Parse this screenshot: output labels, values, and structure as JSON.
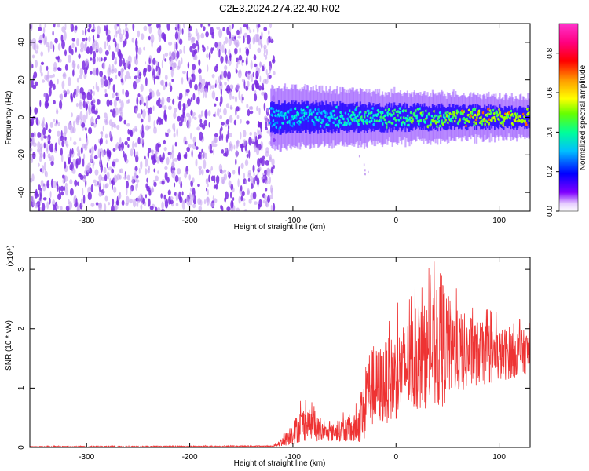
{
  "title": "C2E3.2024.274.22.40.R02",
  "colors": {
    "snr_line": "#ee3333",
    "noise_dots": "#7a2be2",
    "noise_dots_light": "#c7a3f2",
    "axis": "#000000"
  },
  "chart_data": [
    {
      "type": "heatmap",
      "name": "spectrogram",
      "xlabel": "Height of straight line (km)",
      "ylabel": "Frequency (Hz)",
      "xlim": [
        -355,
        130
      ],
      "ylim": [
        -50,
        50
      ],
      "xticks": [
        -300,
        -200,
        -100,
        0,
        100
      ],
      "yticks": [
        -40,
        -20,
        0,
        20,
        40
      ],
      "xtick_labels": [
        "-300",
        "-200",
        "-100",
        "0",
        "100"
      ],
      "ytick_labels": [
        "-40",
        "-20",
        "0",
        "20",
        "40"
      ],
      "noise_region_x": [
        -355,
        -118
      ],
      "signal_band": {
        "x_start": -122,
        "x_end": 130,
        "center_freq": 0,
        "half_width_start": 8,
        "half_width_end": 5
      },
      "colorbar": {
        "label": "Normalized spectral amplitude",
        "range": [
          0,
          0.95
        ],
        "ticks": [
          0.0,
          0.2,
          0.4,
          0.6,
          0.8
        ],
        "tick_labels": [
          "0.0",
          "0.2",
          "0.4",
          "0.6",
          "0.8"
        ],
        "colormap": [
          "#ffffff",
          "#e8d5ff",
          "#8000ff",
          "#0000ff",
          "#00c8ff",
          "#00ff80",
          "#80ff00",
          "#ffff00",
          "#ff8000",
          "#ff0000",
          "#ff0080",
          "#ff00ff"
        ]
      }
    },
    {
      "type": "line",
      "name": "snr",
      "xlabel": "Height of straight line (km)",
      "ylabel": "SNR (10 * v/v)",
      "y_multiplier_label": "(x10⁴)",
      "xlim": [
        -355,
        130
      ],
      "ylim": [
        0,
        3.2
      ],
      "xticks": [
        -300,
        -200,
        -100,
        0,
        100
      ],
      "yticks": [
        0,
        1,
        2,
        3
      ],
      "xtick_labels": [
        "-300",
        "-200",
        "-100",
        "0",
        "100"
      ],
      "ytick_labels": [
        "0",
        "1",
        "2",
        "3"
      ],
      "envelope": {
        "x": [
          -355,
          -120,
          -110,
          -100,
          -90,
          -80,
          -70,
          -60,
          -50,
          -40,
          -30,
          -28,
          -20,
          -10,
          0,
          10,
          20,
          30,
          40,
          45,
          50,
          60,
          70,
          80,
          90,
          100,
          110,
          120,
          130
        ],
        "mean": [
          0.01,
          0.02,
          0.1,
          0.25,
          0.4,
          0.35,
          0.25,
          0.25,
          0.3,
          0.3,
          0.6,
          1.0,
          1.0,
          1.1,
          1.2,
          1.35,
          1.45,
          1.55,
          1.6,
          1.75,
          1.7,
          1.6,
          1.6,
          1.6,
          1.55,
          1.55,
          1.6,
          1.6,
          1.6
        ],
        "spread": [
          0.01,
          0.01,
          0.08,
          0.2,
          0.3,
          0.25,
          0.15,
          0.15,
          0.2,
          0.25,
          0.5,
          0.7,
          0.65,
          0.7,
          0.75,
          0.8,
          0.85,
          0.9,
          1.0,
          1.1,
          0.9,
          0.7,
          0.65,
          0.55,
          0.5,
          0.45,
          0.45,
          0.4,
          0.35
        ]
      }
    }
  ]
}
